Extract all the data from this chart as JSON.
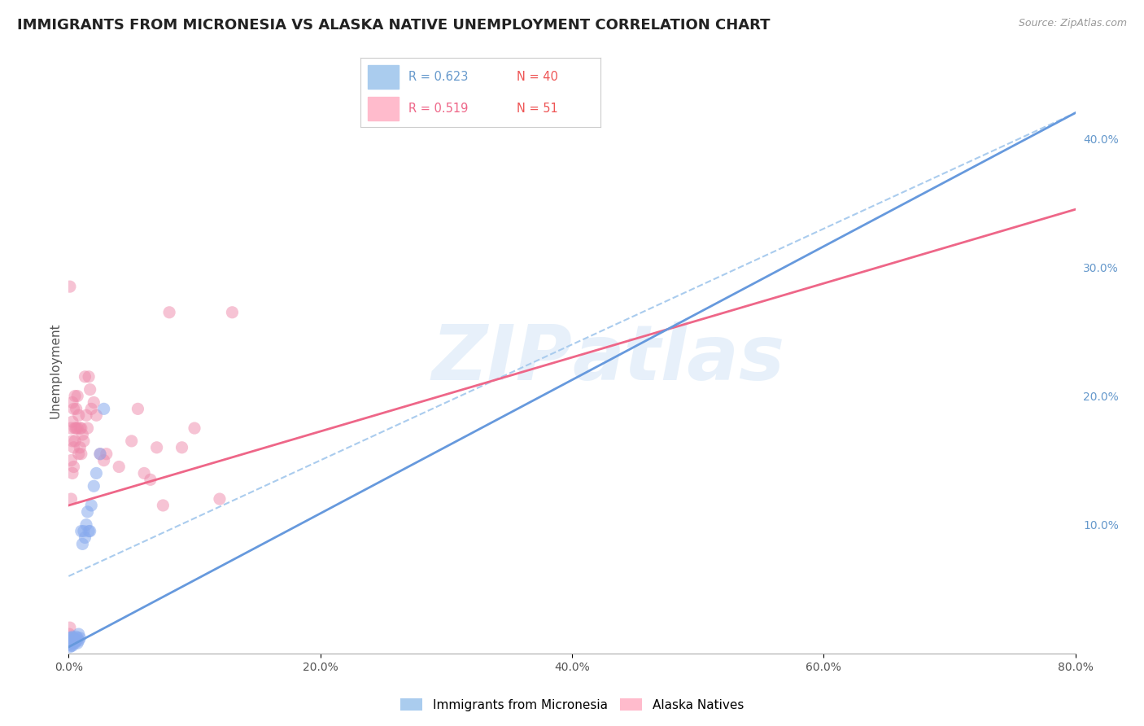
{
  "title": "IMMIGRANTS FROM MICRONESIA VS ALASKA NATIVE UNEMPLOYMENT CORRELATION CHART",
  "source_text": "Source: ZipAtlas.com",
  "ylabel": "Unemployment",
  "xlim": [
    0.0,
    0.8
  ],
  "ylim": [
    0.0,
    0.44
  ],
  "xticks": [
    0.0,
    0.2,
    0.4,
    0.6,
    0.8
  ],
  "xtick_labels": [
    "0.0%",
    "20.0%",
    "40.0%",
    "60.0%",
    "80.0%"
  ],
  "ytick_labels_right": [
    "10.0%",
    "20.0%",
    "30.0%",
    "40.0%"
  ],
  "yticks_right": [
    0.1,
    0.2,
    0.3,
    0.4
  ],
  "watermark_zip": "ZIP",
  "watermark_atlas": "atlas",
  "legend_blue_r": "R = 0.623",
  "legend_blue_n": "N = 40",
  "legend_pink_r": "R = 0.519",
  "legend_pink_n": "N = 51",
  "bottom_legend_blue": "Immigrants from Micronesia",
  "bottom_legend_pink": "Alaska Natives",
  "blue_scatter_x": [
    0.0005,
    0.001,
    0.001,
    0.001,
    0.001,
    0.002,
    0.002,
    0.002,
    0.002,
    0.002,
    0.003,
    0.003,
    0.003,
    0.003,
    0.003,
    0.004,
    0.004,
    0.005,
    0.005,
    0.005,
    0.006,
    0.006,
    0.007,
    0.007,
    0.008,
    0.008,
    0.009,
    0.01,
    0.011,
    0.012,
    0.013,
    0.014,
    0.015,
    0.016,
    0.017,
    0.018,
    0.02,
    0.022,
    0.025,
    0.028
  ],
  "blue_scatter_y": [
    0.01,
    0.008,
    0.01,
    0.012,
    0.005,
    0.008,
    0.01,
    0.012,
    0.007,
    0.006,
    0.009,
    0.01,
    0.013,
    0.008,
    0.006,
    0.01,
    0.012,
    0.009,
    0.011,
    0.008,
    0.013,
    0.01,
    0.008,
    0.012,
    0.01,
    0.015,
    0.012,
    0.095,
    0.085,
    0.095,
    0.09,
    0.1,
    0.11,
    0.095,
    0.095,
    0.115,
    0.13,
    0.14,
    0.155,
    0.19
  ],
  "pink_scatter_x": [
    0.0005,
    0.001,
    0.001,
    0.002,
    0.002,
    0.002,
    0.003,
    0.003,
    0.003,
    0.003,
    0.004,
    0.004,
    0.004,
    0.005,
    0.005,
    0.005,
    0.006,
    0.006,
    0.007,
    0.007,
    0.008,
    0.008,
    0.009,
    0.009,
    0.01,
    0.01,
    0.011,
    0.012,
    0.013,
    0.014,
    0.015,
    0.016,
    0.017,
    0.018,
    0.02,
    0.022,
    0.025,
    0.028,
    0.03,
    0.04,
    0.05,
    0.055,
    0.06,
    0.065,
    0.07,
    0.075,
    0.08,
    0.09,
    0.1,
    0.12,
    0.13
  ],
  "pink_scatter_y": [
    0.015,
    0.02,
    0.285,
    0.12,
    0.15,
    0.175,
    0.14,
    0.165,
    0.18,
    0.195,
    0.145,
    0.16,
    0.19,
    0.165,
    0.175,
    0.2,
    0.175,
    0.19,
    0.175,
    0.2,
    0.185,
    0.155,
    0.16,
    0.175,
    0.155,
    0.175,
    0.17,
    0.165,
    0.215,
    0.185,
    0.175,
    0.215,
    0.205,
    0.19,
    0.195,
    0.185,
    0.155,
    0.15,
    0.155,
    0.145,
    0.165,
    0.19,
    0.14,
    0.135,
    0.16,
    0.115,
    0.265,
    0.16,
    0.175,
    0.12,
    0.265
  ],
  "blue_line_x": [
    0.0,
    0.8
  ],
  "blue_line_y": [
    0.005,
    0.42
  ],
  "pink_line_x": [
    0.0,
    0.8
  ],
  "pink_line_y": [
    0.115,
    0.345
  ],
  "dashed_line_x": [
    0.0,
    0.8
  ],
  "dashed_line_y": [
    0.06,
    0.42
  ],
  "blue_color": "#6699dd",
  "pink_color": "#ee6688",
  "blue_scatter_color": "#88aaee",
  "pink_scatter_color": "#ee88aa",
  "dashed_color": "#aaccee",
  "background_color": "#ffffff",
  "grid_color": "#ddddee",
  "title_fontsize": 13,
  "axis_label_fontsize": 11,
  "tick_fontsize": 10,
  "source_fontsize": 9
}
